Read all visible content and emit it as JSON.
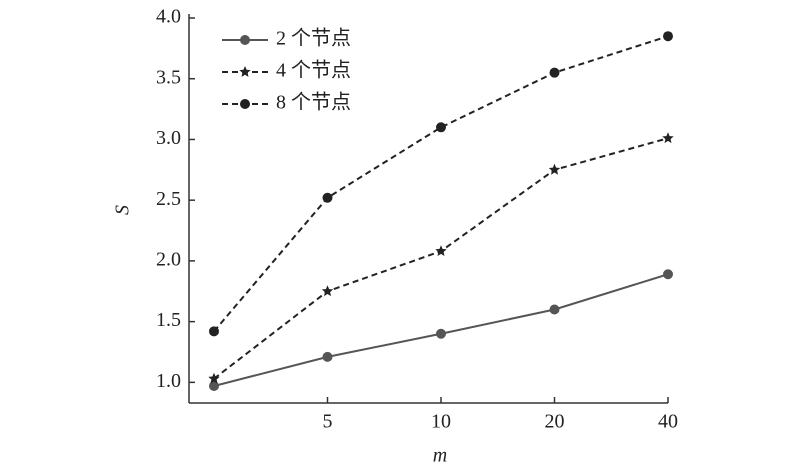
{
  "chart_data": {
    "type": "line",
    "x_label": "m",
    "y_label": "S",
    "categories": [
      null,
      "5",
      "10",
      "20",
      "40"
    ],
    "series": [
      {
        "name": "2 个节点",
        "color": "#555555",
        "dash": "solid",
        "marker": "circle",
        "values": [
          0.97,
          1.21,
          1.4,
          1.6,
          1.89
        ]
      },
      {
        "name": "4 个节点",
        "color": "#222222",
        "dash": "dashed",
        "marker": "star",
        "values": [
          1.03,
          1.75,
          2.08,
          2.75,
          3.01
        ]
      },
      {
        "name": "8 个节点",
        "color": "#222222",
        "dash": "dashed",
        "marker": "circle",
        "values": [
          1.42,
          2.52,
          3.1,
          3.55,
          3.85
        ]
      }
    ],
    "ylim": [
      0.83,
      4.0
    ],
    "yticks": [
      {
        "value": 1,
        "label": "1.0"
      },
      {
        "value": 1.5,
        "label": "1.5"
      },
      {
        "value": 2,
        "label": "2.0"
      },
      {
        "value": 2.5,
        "label": "2.5"
      },
      {
        "value": 3,
        "label": "3.0"
      },
      {
        "value": 3.5,
        "label": "3.5"
      },
      {
        "value": 4,
        "label": "4.0"
      }
    ],
    "grid": false,
    "legend": "upper left"
  }
}
